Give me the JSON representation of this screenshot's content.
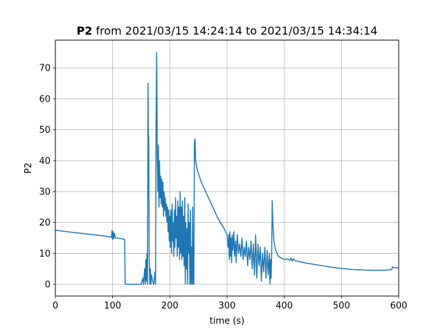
{
  "chart_data": {
    "type": "line",
    "title_bold": "P2",
    "title_rest": " from 2021/03/15 14:24:14 to 2021/03/15 14:34:14",
    "xlabel": "time (s)",
    "ylabel": "P2",
    "xlim": [
      0,
      600
    ],
    "ylim": [
      -3.8,
      79
    ],
    "xticks": [
      0,
      100,
      200,
      300,
      400,
      500,
      600
    ],
    "yticks": [
      0,
      10,
      20,
      30,
      40,
      50,
      60,
      70
    ],
    "grid": true,
    "color": "#1f77b4",
    "series": [
      {
        "values": [
          [
            0,
            17.5
          ],
          [
            30,
            16.8
          ],
          [
            60,
            16.2
          ],
          [
            90,
            15.5
          ],
          [
            98,
            15.2
          ],
          [
            99,
            17.5
          ],
          [
            100,
            14.5
          ],
          [
            101,
            17.0
          ],
          [
            102,
            14.8
          ],
          [
            103,
            16.5
          ],
          [
            105,
            15.0
          ],
          [
            115,
            14.8
          ],
          [
            121,
            14.5
          ],
          [
            122,
            0
          ],
          [
            150,
            0
          ],
          [
            153,
            2
          ],
          [
            154,
            0
          ],
          [
            156,
            5
          ],
          [
            157,
            0
          ],
          [
            158,
            8
          ],
          [
            159,
            1
          ],
          [
            160,
            10
          ],
          [
            161,
            0
          ],
          [
            162,
            65
          ],
          [
            162.5,
            45
          ],
          [
            163,
            48
          ],
          [
            164,
            8
          ],
          [
            165,
            0
          ],
          [
            166,
            5
          ],
          [
            167,
            0
          ],
          [
            168,
            3
          ],
          [
            170,
            1
          ],
          [
            172,
            0
          ],
          [
            174,
            4
          ],
          [
            175,
            0
          ],
          [
            176,
            52
          ],
          [
            177,
            75
          ],
          [
            178,
            42
          ],
          [
            179,
            30
          ],
          [
            180,
            45
          ],
          [
            181,
            25
          ],
          [
            182,
            40
          ],
          [
            183,
            28
          ],
          [
            184,
            35
          ],
          [
            185,
            26
          ],
          [
            186,
            34
          ],
          [
            187,
            25
          ],
          [
            188,
            33
          ],
          [
            189,
            22
          ],
          [
            190,
            30
          ],
          [
            191,
            24
          ],
          [
            192,
            28
          ],
          [
            193,
            22
          ],
          [
            194,
            26
          ],
          [
            195,
            20
          ],
          [
            196,
            25
          ],
          [
            197,
            17
          ],
          [
            198,
            24
          ],
          [
            199,
            14
          ],
          [
            200,
            22
          ],
          [
            201,
            12
          ],
          [
            202,
            24
          ],
          [
            203,
            10
          ],
          [
            204,
            26
          ],
          [
            205,
            14
          ],
          [
            206,
            20
          ],
          [
            207,
            9
          ],
          [
            208,
            24
          ],
          [
            209,
            12
          ],
          [
            210,
            28
          ],
          [
            211,
            15
          ],
          [
            212,
            22
          ],
          [
            213,
            9
          ],
          [
            214,
            27
          ],
          [
            215,
            12
          ],
          [
            216,
            25
          ],
          [
            217,
            8
          ],
          [
            218,
            30
          ],
          [
            219,
            10
          ],
          [
            220,
            25
          ],
          [
            221,
            8
          ],
          [
            222,
            27
          ],
          [
            223,
            9
          ],
          [
            224,
            22
          ],
          [
            225,
            6
          ],
          [
            226,
            28
          ],
          [
            227,
            0
          ],
          [
            228,
            20
          ],
          [
            229,
            5
          ],
          [
            230,
            18
          ],
          [
            231,
            0
          ],
          [
            232,
            26
          ],
          [
            233,
            10
          ],
          [
            234,
            20
          ],
          [
            235,
            0
          ],
          [
            236,
            24
          ],
          [
            237,
            0
          ],
          [
            238,
            12
          ],
          [
            239,
            0
          ],
          [
            240,
            25
          ],
          [
            241,
            0
          ],
          [
            242,
            0
          ],
          [
            243,
            46
          ],
          [
            244,
            47
          ],
          [
            245,
            40
          ],
          [
            248,
            37
          ],
          [
            255,
            33
          ],
          [
            265,
            29
          ],
          [
            275,
            25
          ],
          [
            285,
            21
          ],
          [
            295,
            18
          ],
          [
            300,
            16
          ],
          [
            302,
            12
          ],
          [
            303,
            16
          ],
          [
            304,
            8
          ],
          [
            305,
            17
          ],
          [
            306,
            9
          ],
          [
            307,
            15
          ],
          [
            308,
            7
          ],
          [
            309,
            16
          ],
          [
            310,
            11
          ],
          [
            312,
            17
          ],
          [
            313,
            9
          ],
          [
            315,
            14
          ],
          [
            316,
            7
          ],
          [
            318,
            16
          ],
          [
            320,
            10
          ],
          [
            322,
            13
          ],
          [
            324,
            9
          ],
          [
            326,
            15
          ],
          [
            328,
            8
          ],
          [
            330,
            12
          ],
          [
            332,
            9
          ],
          [
            334,
            14
          ],
          [
            336,
            6
          ],
          [
            338,
            12
          ],
          [
            340,
            8
          ],
          [
            342,
            14
          ],
          [
            344,
            5
          ],
          [
            346,
            13
          ],
          [
            348,
            3
          ],
          [
            350,
            16
          ],
          [
            352,
            2
          ],
          [
            354,
            13
          ],
          [
            356,
            6
          ],
          [
            358,
            12
          ],
          [
            360,
            1
          ],
          [
            362,
            10
          ],
          [
            364,
            4
          ],
          [
            366,
            12
          ],
          [
            368,
            2
          ],
          [
            370,
            11
          ],
          [
            372,
            3
          ],
          [
            374,
            10
          ],
          [
            375,
            0
          ],
          [
            376,
            8
          ],
          [
            377,
            2
          ],
          [
            378,
            10
          ],
          [
            379,
            27
          ],
          [
            380,
            20
          ],
          [
            382,
            14
          ],
          [
            385,
            11
          ],
          [
            390,
            9
          ],
          [
            395,
            8.5
          ],
          [
            400,
            8
          ],
          [
            405,
            8.2
          ],
          [
            410,
            7.8
          ],
          [
            412,
            8.5
          ],
          [
            414,
            7.5
          ],
          [
            416,
            8.2
          ],
          [
            418,
            7.8
          ],
          [
            420,
            7.6
          ],
          [
            430,
            7.2
          ],
          [
            440,
            6.8
          ],
          [
            460,
            6.2
          ],
          [
            480,
            5.6
          ],
          [
            500,
            5.1
          ],
          [
            520,
            4.8
          ],
          [
            540,
            4.6
          ],
          [
            560,
            4.5
          ],
          [
            580,
            4.6
          ],
          [
            588,
            4.8
          ],
          [
            589,
            5.6
          ],
          [
            595,
            5.3
          ],
          [
            600,
            5.4
          ]
        ]
      }
    ]
  }
}
